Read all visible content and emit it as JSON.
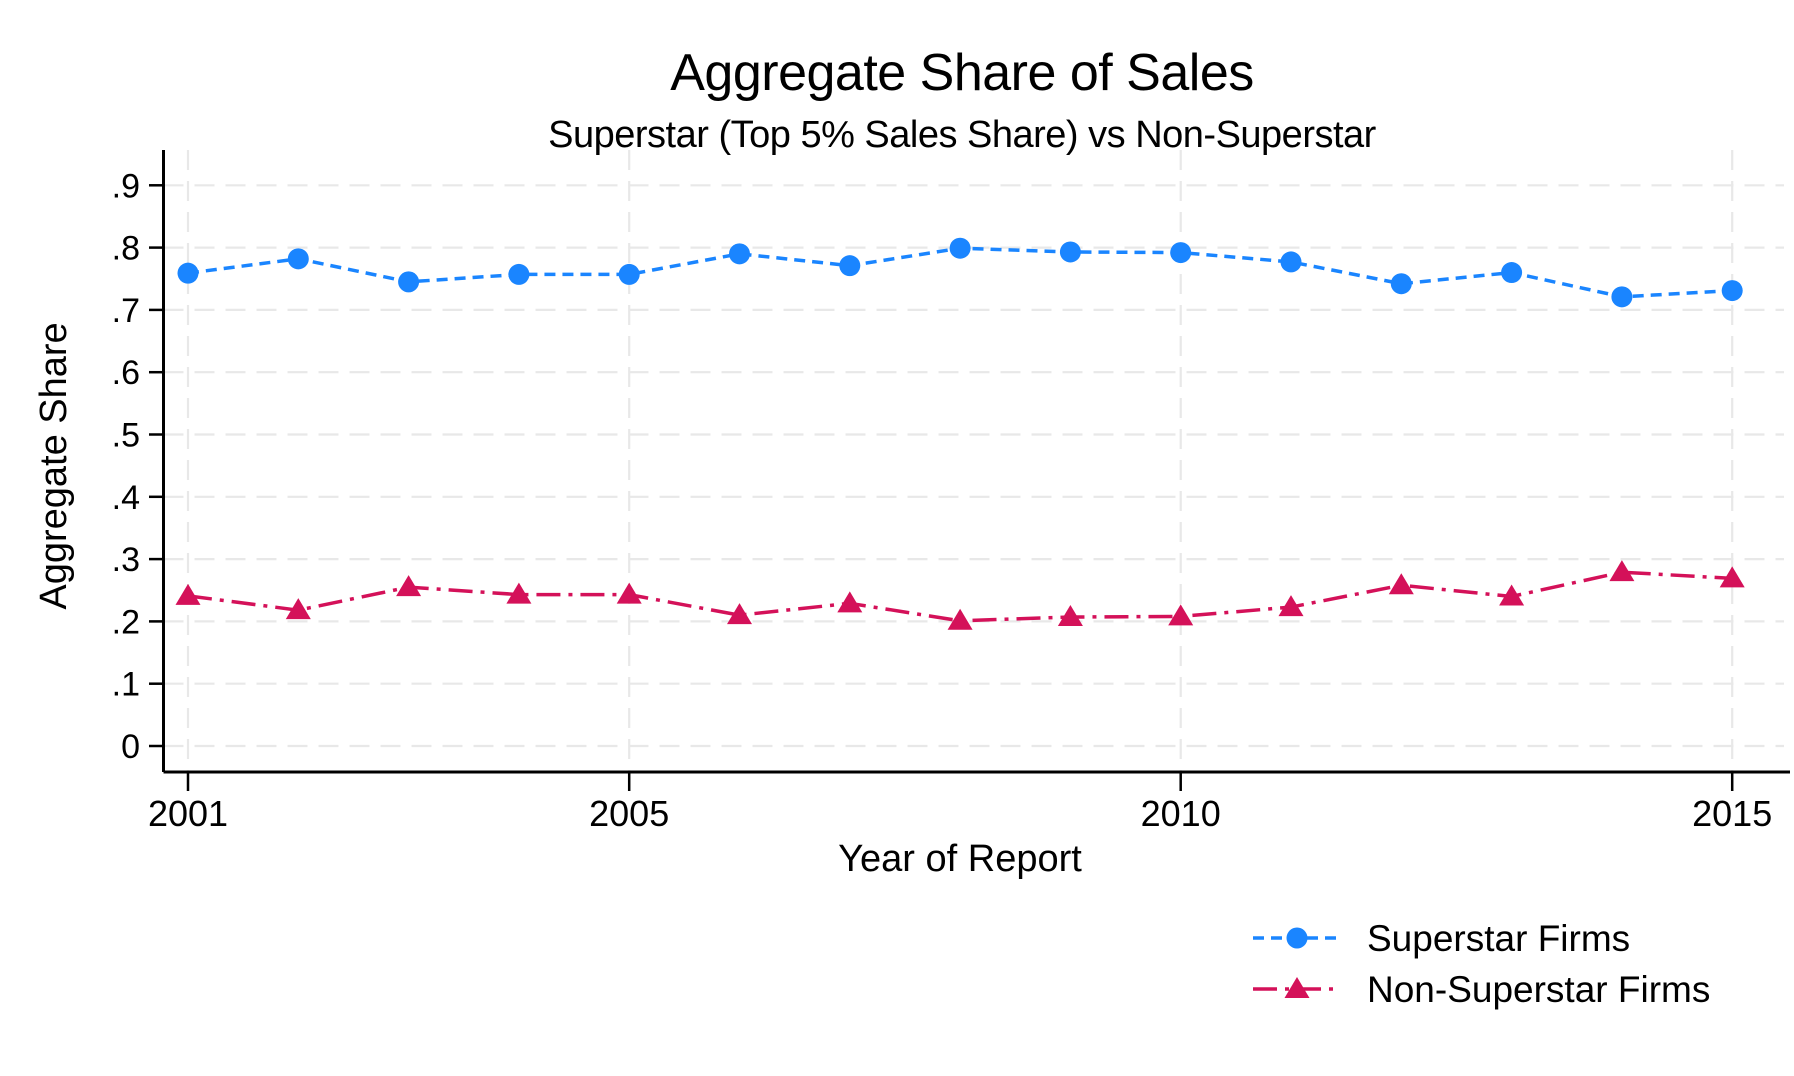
{
  "title": "Aggregate Share of Sales",
  "subtitle": "Superstar (Top 5% Sales Share) vs Non-Superstar",
  "chart_data": {
    "type": "line",
    "x": [
      2001,
      2002,
      2003,
      2004,
      2005,
      2006,
      2007,
      2008,
      2009,
      2010,
      2011,
      2012,
      2013,
      2014,
      2015
    ],
    "series": [
      {
        "name": "Superstar Firms",
        "color": "#1A85FF",
        "marker": "circle",
        "line_style": "dashed",
        "values": [
          0.759,
          0.782,
          0.745,
          0.757,
          0.757,
          0.79,
          0.771,
          0.799,
          0.793,
          0.792,
          0.777,
          0.742,
          0.76,
          0.721,
          0.731
        ]
      },
      {
        "name": "Non-Superstar Firms",
        "color": "#D41159",
        "marker": "triangle",
        "line_style": "dash-dot",
        "values": [
          0.241,
          0.218,
          0.255,
          0.243,
          0.243,
          0.21,
          0.229,
          0.201,
          0.207,
          0.208,
          0.223,
          0.258,
          0.24,
          0.279,
          0.269
        ]
      }
    ],
    "xlabel": "Year of Report",
    "ylabel": "Aggregate Share",
    "ylim": [
      0,
      0.9
    ],
    "ytick_values": [
      0,
      0.1,
      0.2,
      0.3,
      0.4,
      0.5,
      0.6,
      0.7,
      0.8,
      0.9
    ],
    "ytick_labels": [
      "0",
      ".1",
      ".2",
      ".3",
      ".4",
      ".5",
      ".6",
      ".7",
      ".8",
      ".9"
    ],
    "xticks": [
      2001,
      2005,
      2010,
      2015
    ],
    "grid": true,
    "gridline_color": "#E8E8E8",
    "axis_color": "#000000",
    "legend_position": "bottom-right"
  }
}
